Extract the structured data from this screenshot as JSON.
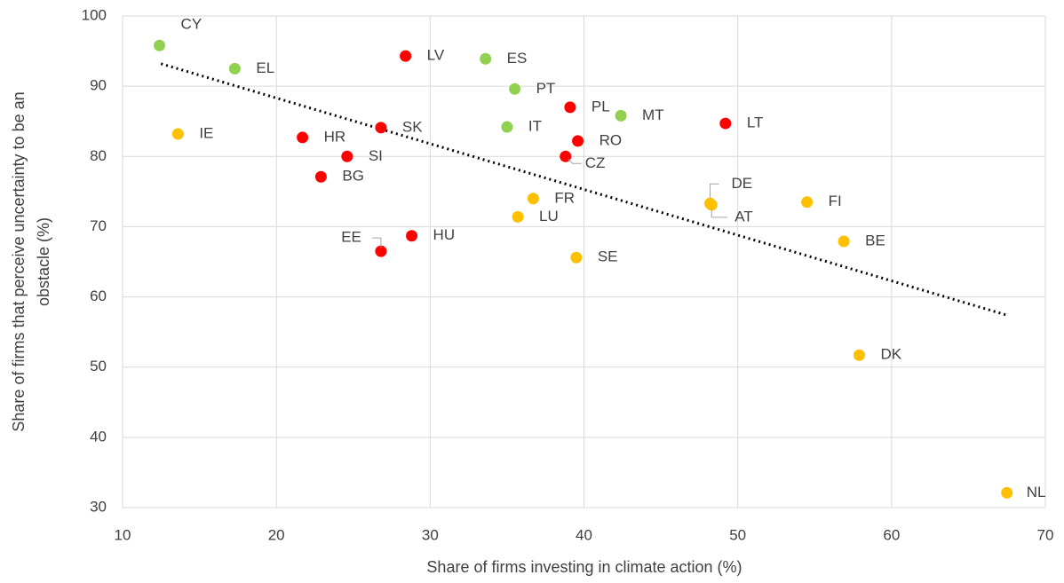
{
  "chart_data": {
    "type": "scatter",
    "xlabel": "Share of firms investing in climate action (%)",
    "ylabel": [
      "Share of firms that perceive uncertainty to be an",
      "obstacle (%)"
    ],
    "xlim": [
      10,
      70
    ],
    "xticks": [
      10,
      20,
      30,
      40,
      50,
      60,
      70
    ],
    "ylim": [
      30,
      100
    ],
    "yticks": [
      30,
      40,
      50,
      60,
      70,
      80,
      90,
      100
    ],
    "grid": true,
    "series": [
      {
        "color": "#92d050",
        "labels": [
          "CY",
          "EL",
          "ES",
          "PT",
          "IT",
          "MT"
        ],
        "x": [
          12.4,
          17.3,
          33.6,
          35.5,
          35.0,
          42.4
        ],
        "values": [
          95.8,
          92.5,
          93.9,
          89.6,
          84.2,
          85.8
        ]
      },
      {
        "color": "#ff0000",
        "labels": [
          "LV",
          "PL",
          "LT",
          "SK",
          "HR",
          "RO",
          "SI",
          "CZ",
          "BG",
          "HU",
          "EE"
        ],
        "x": [
          28.4,
          39.1,
          49.2,
          26.8,
          21.7,
          39.6,
          24.6,
          38.8,
          22.9,
          28.8,
          26.8
        ],
        "values": [
          94.3,
          87.0,
          84.7,
          84.1,
          82.7,
          82.2,
          80.0,
          80.0,
          77.1,
          68.7,
          66.5
        ]
      },
      {
        "color": "#ffc000",
        "labels": [
          "IE",
          "FR",
          "LU",
          "DE",
          "AT",
          "FI",
          "BE",
          "SE",
          "DK",
          "NL"
        ],
        "x": [
          13.6,
          36.7,
          35.7,
          48.2,
          48.3,
          54.5,
          56.9,
          39.5,
          57.9,
          67.5
        ],
        "values": [
          83.2,
          74.0,
          71.4,
          73.3,
          73.1,
          73.5,
          67.9,
          65.6,
          51.7,
          32.1
        ]
      }
    ],
    "trendline": {
      "x": [
        12.5,
        67.5
      ],
      "values": [
        93.2,
        57.4
      ],
      "color": "#000000"
    }
  }
}
